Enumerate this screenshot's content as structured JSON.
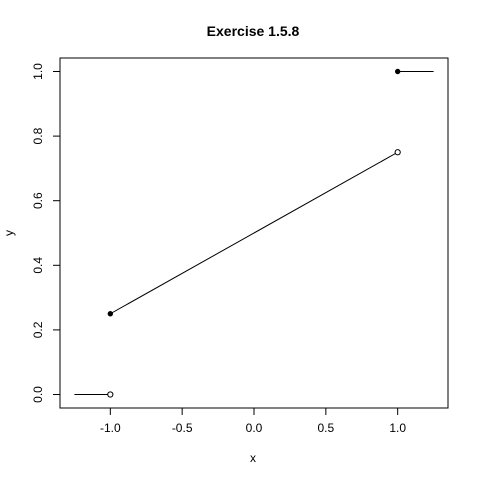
{
  "chart_data": {
    "type": "line",
    "title": "Exercise 1.5.8",
    "xlabel": "x",
    "ylabel": "y",
    "xlim": [
      -1.25,
      1.25
    ],
    "ylim": [
      0,
      1
    ],
    "x_ticks": [
      -1.0,
      -0.5,
      0.0,
      0.5,
      1.0
    ],
    "x_tick_labels": [
      "-1.0",
      "-0.5",
      "0.0",
      "0.5",
      "1.0"
    ],
    "y_ticks": [
      0.0,
      0.2,
      0.4,
      0.6,
      0.8,
      1.0
    ],
    "y_tick_labels": [
      "0.0",
      "0.2",
      "0.4",
      "0.6",
      "0.8",
      "1.0"
    ],
    "grid": false,
    "segments": [
      {
        "x": [
          -1.25,
          -1.0
        ],
        "y": [
          0.0,
          0.0
        ]
      },
      {
        "x": [
          -1.0,
          1.0
        ],
        "y": [
          0.25,
          0.75
        ]
      },
      {
        "x": [
          1.0,
          1.25
        ],
        "y": [
          1.0,
          1.0
        ]
      }
    ],
    "points": [
      {
        "x": -1.0,
        "y": 0.0,
        "style": "open"
      },
      {
        "x": -1.0,
        "y": 0.25,
        "style": "filled"
      },
      {
        "x": 1.0,
        "y": 0.75,
        "style": "open"
      },
      {
        "x": 1.0,
        "y": 1.0,
        "style": "filled"
      }
    ]
  }
}
